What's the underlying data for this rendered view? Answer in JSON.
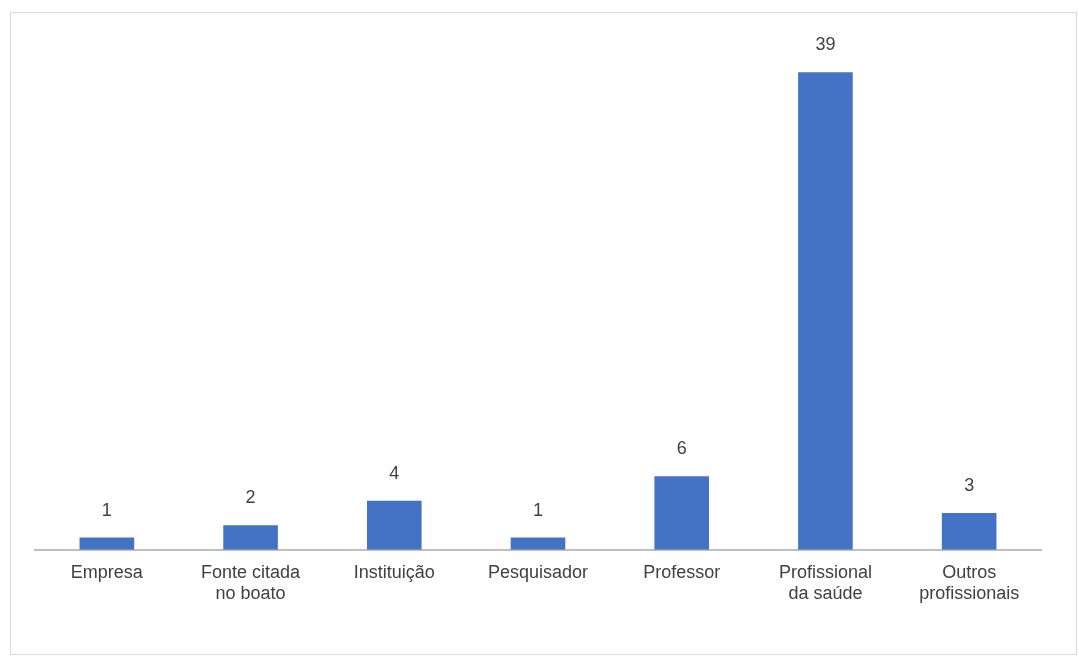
{
  "chart_data": {
    "type": "bar",
    "categories": [
      "Empresa",
      "Fonte citada no boato",
      "Instituição",
      "Pesquisador",
      "Professor",
      "Profissional da saúde",
      "Outros profissionais"
    ],
    "values": [
      1,
      2,
      4,
      1,
      6,
      39,
      3
    ],
    "color": "#4472c4",
    "data_labels": true
  }
}
